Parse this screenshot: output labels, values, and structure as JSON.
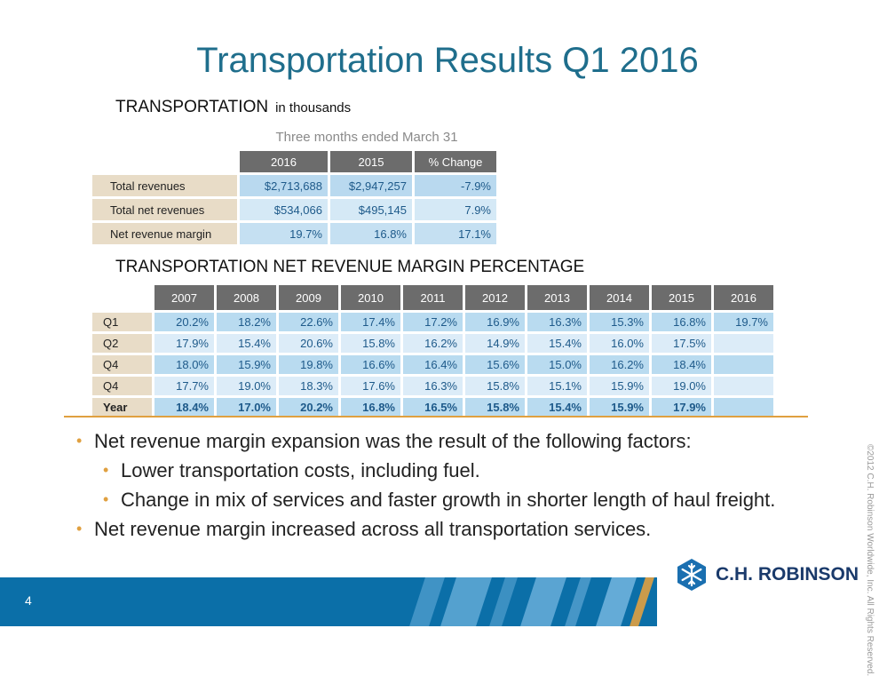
{
  "slide": {
    "title": "Transportation Results Q1 2016",
    "page_number": "4"
  },
  "section1": {
    "heading": "TRANSPORTATION",
    "heading_suffix": "in thousands",
    "caption": "Three months ended March 31",
    "columns": [
      "2016",
      "2015",
      "% Change"
    ],
    "rows": [
      {
        "label": "Total revenues",
        "values": [
          "$2,713,688",
          "$2,947,257",
          "-7.9%"
        ]
      },
      {
        "label": "Total net revenues",
        "values": [
          "$534,066",
          "$495,145",
          "7.9%"
        ]
      },
      {
        "label": "Net revenue margin",
        "values": [
          "19.7%",
          "16.8%",
          "17.1%"
        ]
      }
    ]
  },
  "section2": {
    "heading": "TRANSPORTATION NET REVENUE MARGIN PERCENTAGE",
    "years": [
      "2007",
      "2008",
      "2009",
      "2010",
      "2011",
      "2012",
      "2013",
      "2014",
      "2015",
      "2016"
    ],
    "rows": [
      {
        "label": "Q1",
        "values": [
          "20.2%",
          "18.2%",
          "22.6%",
          "17.4%",
          "17.2%",
          "16.9%",
          "16.3%",
          "15.3%",
          "16.8%",
          "19.7%"
        ]
      },
      {
        "label": "Q2",
        "values": [
          "17.9%",
          "15.4%",
          "20.6%",
          "15.8%",
          "16.2%",
          "14.9%",
          "15.4%",
          "16.0%",
          "17.5%",
          ""
        ]
      },
      {
        "label": "Q4",
        "values": [
          "18.0%",
          "15.9%",
          "19.8%",
          "16.6%",
          "16.4%",
          "15.6%",
          "15.0%",
          "16.2%",
          "18.4%",
          ""
        ]
      },
      {
        "label": "Q4",
        "values": [
          "17.7%",
          "19.0%",
          "18.3%",
          "17.6%",
          "16.3%",
          "15.8%",
          "15.1%",
          "15.9%",
          "19.0%",
          ""
        ]
      },
      {
        "label": "Year",
        "values": [
          "18.4%",
          "17.0%",
          "20.2%",
          "16.8%",
          "16.5%",
          "15.8%",
          "15.4%",
          "15.9%",
          "17.9%",
          ""
        ]
      }
    ]
  },
  "bullets": {
    "b1": "Net revenue margin expansion was the result of the following factors:",
    "b1a": "Lower transportation costs, including fuel.",
    "b1b": "Change in mix of services and faster growth in shorter length of haul freight.",
    "b2": "Net revenue margin increased across all transportation services."
  },
  "footer": {
    "logo_text": "C.H. ROBINSON",
    "copyright": "©2012 C.H. Robinson Worldwide, Inc. All Rights Reserved."
  },
  "colors": {
    "title": "#1f6e8c",
    "header_cell": "#6c6c6c",
    "label_cell": "#e8dcc7",
    "value_cell": "#c5e0f2",
    "accent_rule": "#e0a040",
    "footer_bar": "#0b6fa8"
  }
}
